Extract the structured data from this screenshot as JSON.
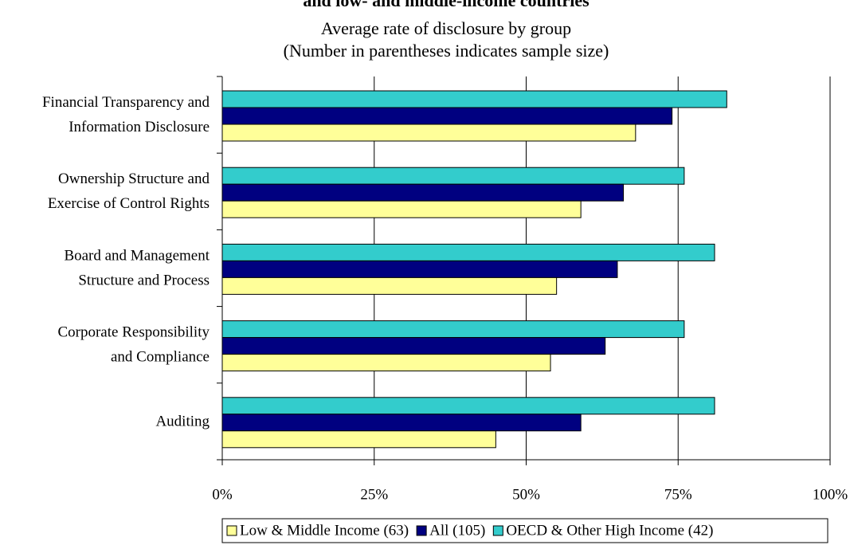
{
  "chart_data": {
    "type": "bar",
    "orientation": "horizontal",
    "title": "and low- and middle-income countries",
    "subtitle": "Average rate of disclosure by group",
    "subtitle2": "(Number in parentheses indicates sample size)",
    "categories": [
      [
        "Financial Transparency and",
        "Information Disclosure"
      ],
      [
        "Ownership Structure and",
        "Exercise of Control Rights"
      ],
      [
        "Board and Management",
        "Structure and Process"
      ],
      [
        "Corporate Responsibility",
        "and Compliance"
      ],
      [
        "Auditing"
      ]
    ],
    "series": [
      {
        "name": "OECD & Other High Income (42)",
        "color": "#33cccc",
        "values": [
          83,
          76,
          81,
          76,
          81
        ]
      },
      {
        "name": "All (105)",
        "color": "#000080",
        "values": [
          74,
          66,
          65,
          63,
          59
        ]
      },
      {
        "name": "Low & Middle Income (63)",
        "color": "#ffff99",
        "values": [
          68,
          59,
          55,
          54,
          45
        ]
      }
    ],
    "xlim": [
      0,
      100
    ],
    "xticks": [
      0,
      25,
      50,
      75,
      100
    ],
    "xtick_labels": [
      "0%",
      "25%",
      "50%",
      "75%",
      "100%"
    ],
    "grid": "vertical",
    "legend": {
      "position": "bottom-right",
      "order": [
        "Low & Middle Income (63)",
        "All (105)",
        "OECD & Other High Income (42)"
      ]
    }
  }
}
